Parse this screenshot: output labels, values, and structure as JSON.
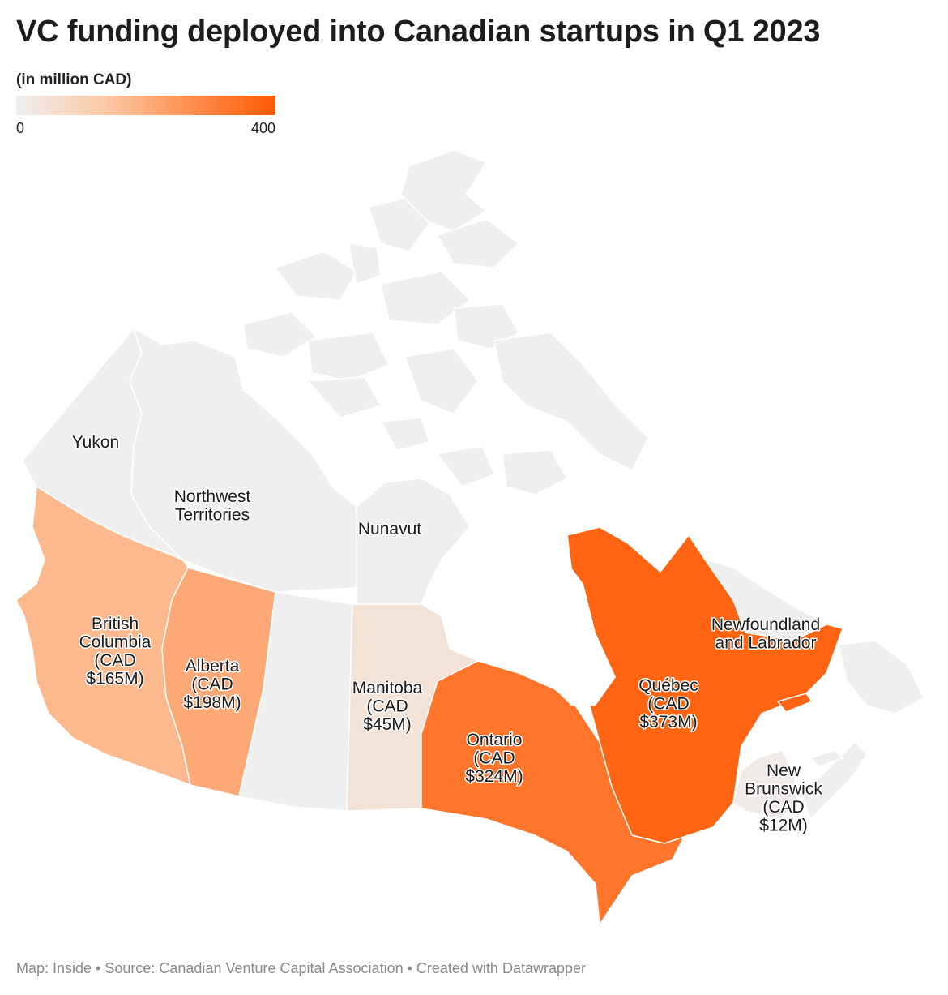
{
  "title": "VC funding deployed into Canadian startups in Q1 2023",
  "subtitle": "(in million CAD)",
  "legend": {
    "min": "0",
    "max": "400",
    "colors": [
      "#efefef",
      "#fcc7a4",
      "#fe8a48",
      "#ff5a05"
    ]
  },
  "footer": "Map: Inside • Source: Canadian Venture Capital Association • Created with Datawrapper",
  "colors": {
    "no_data": "#efefef",
    "boundary": "#ffffff"
  },
  "regions": [
    {
      "id": "yukon",
      "label_lines": [
        "Yukon"
      ],
      "value": null
    },
    {
      "id": "nwt",
      "label_lines": [
        "Northwest",
        "Territories"
      ],
      "value": null
    },
    {
      "id": "nunavut",
      "label_lines": [
        "Nunavut"
      ],
      "value": null
    },
    {
      "id": "bc",
      "label_lines": [
        "British",
        "Columbia",
        "(CAD",
        "$165M)"
      ],
      "value": 165
    },
    {
      "id": "alberta",
      "label_lines": [
        "Alberta",
        "(CAD",
        "$198M)"
      ],
      "value": 198
    },
    {
      "id": "saskatchewan",
      "label_lines": [],
      "value": null
    },
    {
      "id": "manitoba",
      "label_lines": [
        "Manitoba",
        "(CAD",
        "$45M)"
      ],
      "value": 45
    },
    {
      "id": "ontario",
      "label_lines": [
        "Ontario",
        "(CAD",
        "$324M)"
      ],
      "value": 324
    },
    {
      "id": "quebec",
      "label_lines": [
        "Québec",
        "(CAD",
        "$373M)"
      ],
      "value": 373
    },
    {
      "id": "nl",
      "label_lines": [
        "Newfoundland",
        "and Labrador"
      ],
      "value": null
    },
    {
      "id": "nb",
      "label_lines": [
        "New",
        "Brunswick",
        "(CAD",
        "$12M)"
      ],
      "value": 12
    },
    {
      "id": "ns",
      "label_lines": [],
      "value": null
    },
    {
      "id": "pei",
      "label_lines": [],
      "value": null
    }
  ]
}
